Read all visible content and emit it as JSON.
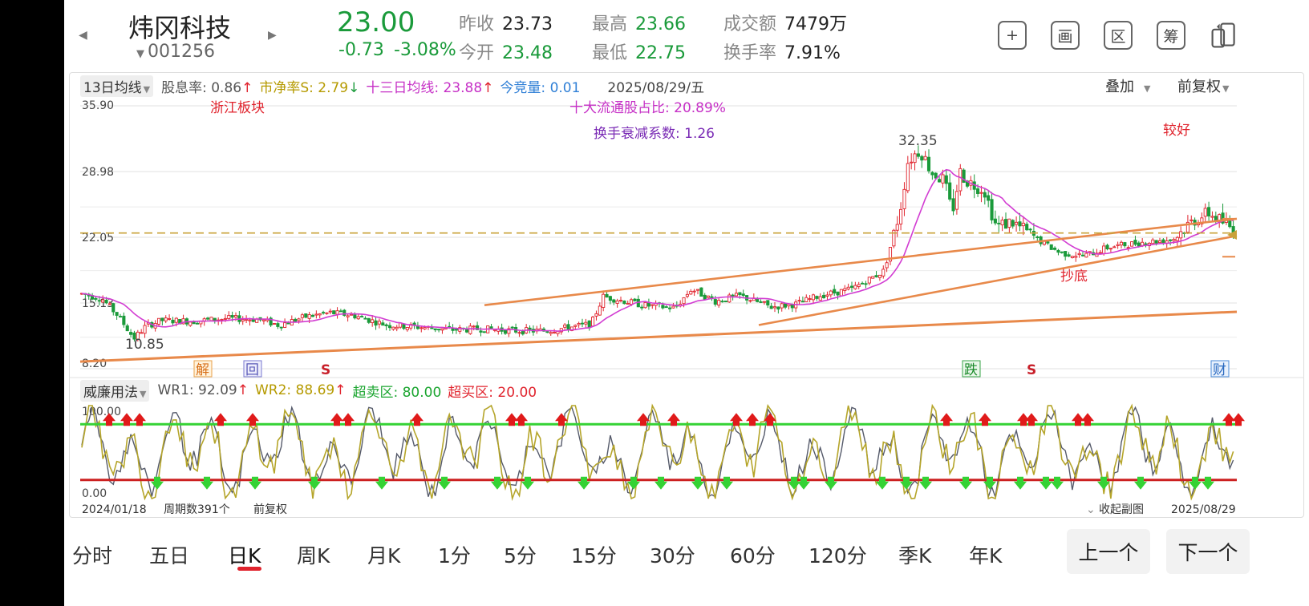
{
  "header": {
    "name": "炜冈科技",
    "code": "001256",
    "price": "23.00",
    "change": "-0.73",
    "change_pct": "-3.08%",
    "stats": {
      "prev_close_label": "昨收",
      "prev_close": "23.73",
      "open_label": "今开",
      "open": "23.48",
      "high_label": "最高",
      "high": "23.66",
      "low_label": "最低",
      "low": "22.75",
      "amount_label": "成交额",
      "amount": "7479万",
      "turnover_label": "换手率",
      "turnover": "7.91%"
    },
    "tools": [
      "+",
      "画",
      "区",
      "筹"
    ]
  },
  "main_chart": {
    "selector": "13日均线",
    "indicators": [
      {
        "label": "股息率: 0.86",
        "arrow": "↑",
        "color": "#555555"
      },
      {
        "label": "市净率S: 2.79",
        "arrow": "↓",
        "color": "#b59a00"
      },
      {
        "label": "十三日均线: 23.88",
        "arrow": "↑",
        "color": "#c630c6"
      },
      {
        "label": "今竞量: 0.01",
        "arrow": "",
        "color": "#2f7fd6"
      }
    ],
    "date": "2025/08/29/五",
    "overlay_label": "叠加",
    "adjust_label": "前复权",
    "y_ticks": [
      "35.90",
      "28.98",
      "22.05",
      "15.13",
      "8.20"
    ],
    "annotations": {
      "sector": "浙江板块",
      "top10_ratio": "十大流通股占比:  20.89%",
      "turnover_decay": "换手衰减系数: 1.26",
      "rating": "较好",
      "bottom_buy": "抄底",
      "high_mark": "32.35",
      "low_mark": "10.85"
    },
    "event_marks": [
      "解",
      "回",
      "S",
      "跌",
      "S",
      "财"
    ],
    "colors": {
      "up": "#e0232d",
      "down": "#1a9a3a",
      "ma": "#d23cd2",
      "trend": "#e8894a",
      "level": "#c9a23a"
    }
  },
  "sub_chart": {
    "selector": "威廉用法",
    "indicators": [
      {
        "label": "WR1: 92.09",
        "arrow": "↑",
        "color": "#555555"
      },
      {
        "label": "WR2: 88.69",
        "arrow": "↑",
        "color": "#b59a00"
      },
      {
        "label": "超卖区: 80.00",
        "arrow": "",
        "color": "#1aa52f"
      },
      {
        "label": "超买区: 20.00",
        "arrow": "",
        "color": "#e0232d"
      }
    ],
    "y_ticks": [
      "100.00",
      "0.00"
    ],
    "footer": {
      "start_date": "2024/01/18",
      "period_count": "周期数391个",
      "adjust": "前复权",
      "collapse": "收起副图",
      "end_date": "2025/08/29"
    }
  },
  "tabs": [
    "分时",
    "五日",
    "日K",
    "周K",
    "月K",
    "1分",
    "5分",
    "15分",
    "30分",
    "60分",
    "120分",
    "季K",
    "年K"
  ],
  "active_tab": "日K",
  "nav": {
    "prev": "上一个",
    "next": "下一个"
  }
}
